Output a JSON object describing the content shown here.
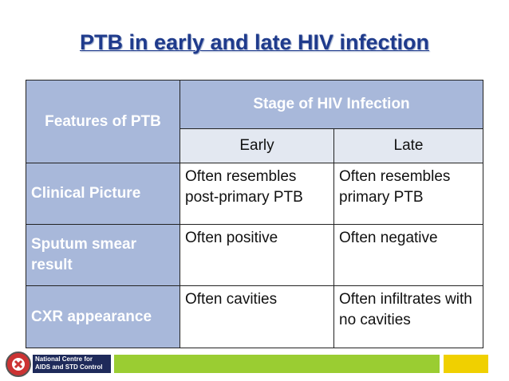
{
  "title": "PTB in early and late HIV infection",
  "table": {
    "header": {
      "features": "Features of PTB",
      "stage": "Stage of HIV Infection",
      "sub": [
        "Early",
        "Late"
      ]
    },
    "rows": [
      [
        "Clinical Picture",
        "Often resembles post-primary PTB",
        "Often resembles primary PTB"
      ],
      [
        "Sputum smear result",
        "Often positive",
        "Often negative"
      ],
      [
        "CXR appearance",
        "Often cavities",
        "Often infiltrates with no cavities"
      ]
    ]
  },
  "footer": {
    "org": "National Centre for AIDS and STD Control"
  }
}
